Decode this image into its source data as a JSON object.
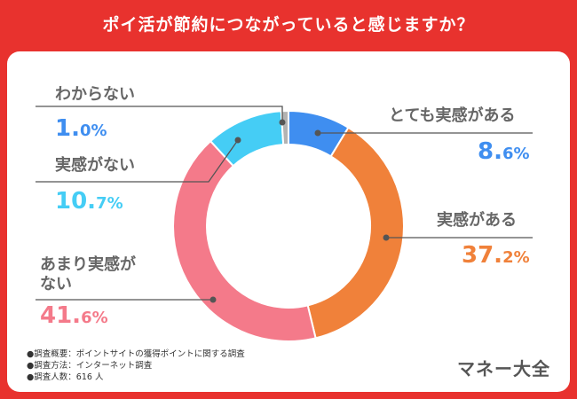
{
  "title": "ポイ活が節約につながっていると感じますか？",
  "chart_data": {
    "type": "pie",
    "donut": true,
    "title": "ポイ活が節約につながっていると感じますか？",
    "unit": "%",
    "slices": [
      {
        "label": "とても実感がある",
        "value": 8.6,
        "pct_int": "8.",
        "pct_dec": "6%",
        "color": "#3f8ef0"
      },
      {
        "label": "実感がある",
        "value": 37.2,
        "pct_int": "37.",
        "pct_dec": "2%",
        "color": "#f0813a"
      },
      {
        "label": "あまり実感がない",
        "label_lines": [
          "あまり実感が",
          "ない"
        ],
        "value": 41.6,
        "pct_int": "41.",
        "pct_dec": "6%",
        "color": "#f47a8a"
      },
      {
        "label": "実感がない",
        "value": 10.7,
        "pct_int": "10.",
        "pct_dec": "7%",
        "color": "#45cdf5"
      },
      {
        "label": "わからない",
        "value": 1.0,
        "pct_int": "1.",
        "pct_dec": "0%",
        "color": "#b3b3b3"
      }
    ]
  },
  "survey_notes": [
    "●調査概要：ポイントサイトの獲得ポイントに関する調査",
    "●調査方法：インターネット調査",
    "●調査人数：616 人"
  ],
  "brand": "マネー大全"
}
